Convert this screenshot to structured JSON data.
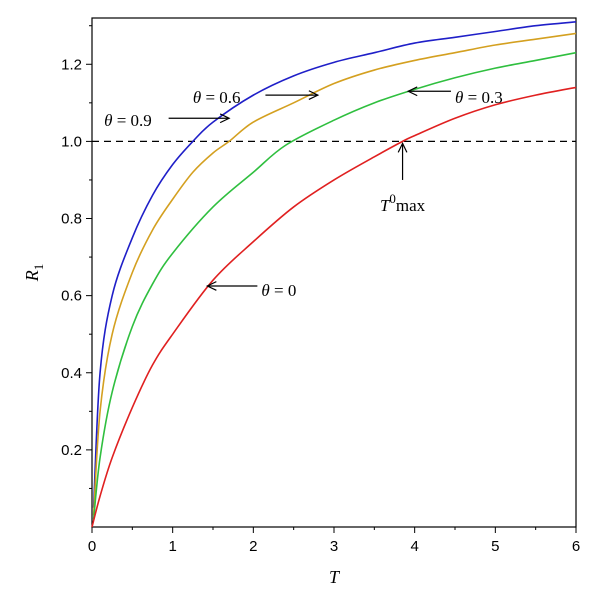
{
  "chart_data": {
    "type": "line",
    "title": "",
    "xlabel": "T",
    "ylabel_main": "R",
    "ylabel_sub": "1",
    "xlim": [
      0,
      6
    ],
    "ylim": [
      0.0,
      1.32
    ],
    "xticks": [
      0,
      1,
      2,
      3,
      4,
      5,
      6
    ],
    "xtick_labels": [
      "0",
      "1",
      "2",
      "3",
      "4",
      "5",
      "6"
    ],
    "yticks": [
      0.2,
      0.4,
      0.6,
      0.8,
      1.0,
      1.2
    ],
    "ytick_labels": [
      "0.2",
      "0.4",
      "0.6",
      "0.8",
      "1.0",
      "1.2"
    ],
    "grid": false,
    "reference_line": {
      "y": 1.0,
      "style": "dashed",
      "color": "#000000"
    },
    "series": [
      {
        "name": "θ = 0.9",
        "color": "#1f1fc8",
        "x": [
          0.02,
          0.1,
          0.25,
          0.5,
          0.75,
          1.0,
          1.25,
          1.5,
          2.0,
          2.5,
          3.0,
          3.5,
          4.0,
          4.5,
          5.0,
          5.5,
          6.0
        ],
        "y": [
          0.05,
          0.4,
          0.6,
          0.75,
          0.86,
          0.94,
          1.0,
          1.05,
          1.12,
          1.17,
          1.205,
          1.23,
          1.255,
          1.27,
          1.285,
          1.3,
          1.31
        ]
      },
      {
        "name": "θ = 0.6",
        "color": "#d4a020",
        "x": [
          0.02,
          0.1,
          0.25,
          0.5,
          0.75,
          1.0,
          1.25,
          1.5,
          1.7,
          2.0,
          2.5,
          3.0,
          3.5,
          4.0,
          4.5,
          5.0,
          5.5,
          6.0
        ],
        "y": [
          0.03,
          0.3,
          0.5,
          0.66,
          0.77,
          0.85,
          0.92,
          0.97,
          1.0,
          1.05,
          1.1,
          1.15,
          1.185,
          1.21,
          1.23,
          1.25,
          1.265,
          1.28
        ]
      },
      {
        "name": "θ = 0.3",
        "color": "#2fbf3f",
        "x": [
          0.02,
          0.1,
          0.25,
          0.5,
          0.75,
          1.0,
          1.5,
          2.0,
          2.4,
          3.0,
          3.5,
          4.0,
          4.5,
          5.0,
          5.5,
          6.0
        ],
        "y": [
          0.02,
          0.18,
          0.35,
          0.52,
          0.63,
          0.71,
          0.83,
          0.92,
          0.99,
          1.055,
          1.1,
          1.135,
          1.165,
          1.19,
          1.21,
          1.23
        ]
      },
      {
        "name": "θ = 0",
        "color": "#e02020",
        "x": [
          0.0,
          0.1,
          0.25,
          0.5,
          0.75,
          1.0,
          1.5,
          2.0,
          2.5,
          3.0,
          3.5,
          3.85,
          4.0,
          4.5,
          5.0,
          5.5,
          6.0
        ],
        "y": [
          0.0,
          0.08,
          0.18,
          0.31,
          0.42,
          0.5,
          0.64,
          0.74,
          0.83,
          0.9,
          0.96,
          1.0,
          1.015,
          1.06,
          1.095,
          1.12,
          1.14
        ]
      }
    ],
    "annotations": [
      {
        "id": "ann-09",
        "theta": "θ",
        "value": " = 0.9",
        "text_x": 0.15,
        "text_y": 1.055,
        "arrow_from_x": 0.95,
        "arrow_to_x": 1.7,
        "arrow_y": 1.06,
        "direction": "right"
      },
      {
        "id": "ann-06",
        "theta": "θ",
        "value": " = 0.6",
        "text_x": 1.25,
        "text_y": 1.115,
        "arrow_from_x": 2.15,
        "arrow_to_x": 2.8,
        "arrow_y": 1.12,
        "direction": "right"
      },
      {
        "id": "ann-03",
        "theta": "θ",
        "value": " = 0.3",
        "text_x": 4.5,
        "text_y": 1.115,
        "arrow_from_x": 4.45,
        "arrow_to_x": 3.92,
        "arrow_y": 1.13,
        "direction": "left"
      },
      {
        "id": "ann-0",
        "theta": "θ",
        "value": " = 0",
        "text_x": 2.1,
        "text_y": 0.615,
        "arrow_from_x": 2.05,
        "arrow_to_x": 1.43,
        "arrow_y": 0.625,
        "direction": "left"
      }
    ],
    "tmax_annotation": {
      "main": "T",
      "sup": "0",
      "suffix": "max",
      "x": 3.85,
      "arrow_tail_y": 0.9,
      "arrow_head_y": 1.0,
      "text_y": 0.83
    }
  }
}
